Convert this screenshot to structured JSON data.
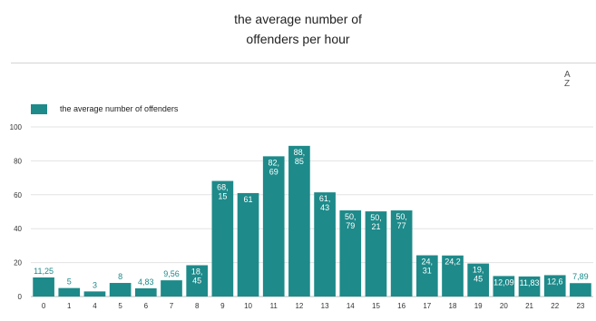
{
  "header": {
    "title_lines": [
      "the average number of",
      "offenders per hour"
    ]
  },
  "toolbar": {
    "sort_icon": "sort-az-icon",
    "sort_label_top": "A",
    "sort_label_bottom": "Z"
  },
  "colors": {
    "bar": "#1e8a8a",
    "grid": "#e3e3e3",
    "axis": "#bdbdbd"
  },
  "chart_data": {
    "type": "bar",
    "title": "the average number of offenders per hour",
    "legend": {
      "position": "top-left",
      "entries": [
        "the average number of offenders"
      ]
    },
    "categories": [
      "0",
      "1",
      "4",
      "5",
      "6",
      "7",
      "8",
      "9",
      "10",
      "11",
      "12",
      "13",
      "14",
      "15",
      "16",
      "17",
      "18",
      "19",
      "20",
      "21",
      "22",
      "23"
    ],
    "series": [
      {
        "name": "the average number of offenders",
        "values": [
          11.25,
          5,
          3,
          8,
          4.83,
          9.56,
          18.45,
          68.15,
          61,
          82.69,
          88.85,
          61.43,
          50.79,
          50.21,
          50.77,
          24.31,
          24.2,
          19.45,
          12.09,
          11.83,
          12.6,
          7.89
        ],
        "labels": [
          [
            "11,25"
          ],
          [
            "5"
          ],
          [
            "3"
          ],
          [
            "8"
          ],
          [
            "4,83"
          ],
          [
            "9,56"
          ],
          [
            "18,",
            "45"
          ],
          [
            "68,",
            "15"
          ],
          [
            "61"
          ],
          [
            "82,",
            "69"
          ],
          [
            "88,",
            "85"
          ],
          [
            "61,",
            "43"
          ],
          [
            "50,",
            "79"
          ],
          [
            "50,",
            "21"
          ],
          [
            "50,",
            "77"
          ],
          [
            "24,",
            "31"
          ],
          [
            "24,2"
          ],
          [
            "19,",
            "45"
          ],
          [
            "12,09"
          ],
          [
            "11,83"
          ],
          [
            "12,6"
          ],
          [
            "7,89"
          ]
        ]
      }
    ],
    "yticks": [
      0,
      20,
      40,
      60,
      80,
      100
    ],
    "ylim": [
      0,
      100
    ],
    "grid": true,
    "xlabel": "",
    "ylabel": ""
  }
}
